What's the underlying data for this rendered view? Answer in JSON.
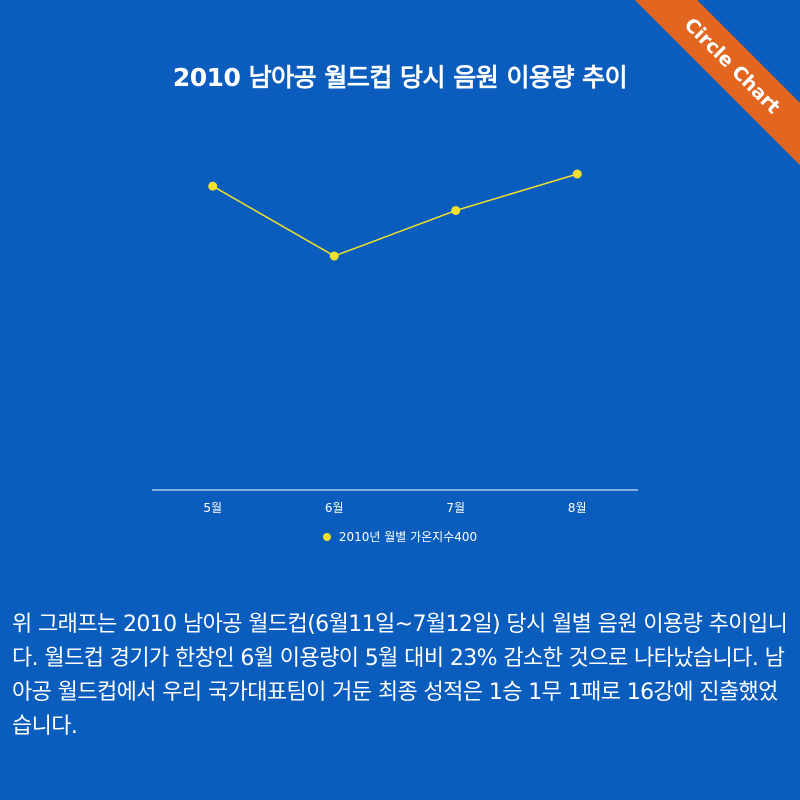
{
  "badge": "Circle Chart",
  "colors": {
    "background": "#0a5cbd",
    "series": "#f2e12c",
    "axis": "#ffffff",
    "badge": "#e2661f"
  },
  "chart_data": {
    "type": "line",
    "title": "2010 남아공 월드컵 당시 음원 이용량 추이",
    "categories": [
      "5월",
      "6월",
      "7월",
      "8월"
    ],
    "series": [
      {
        "name": "2010년 월별 가온지수400",
        "values": [
          100,
          77,
          92,
          104
        ]
      }
    ],
    "ylim": [
      0,
      130
    ],
    "grid": false,
    "y_axis_labels_shown": false,
    "legend_position": "bottom"
  },
  "description": "위 그래프는 2010 남아공 월드컵(6월11일~7월12일) 당시 월별 음원 이용량 추이입니다. 월드컵 경기가 한창인 6월 이용량이 5월 대비 23% 감소한 것으로 나타났습니다. 남아공 월드컵에서 우리 국가대표팀이 거둔 최종 성적은 1승 1무 1패로 16강에 진출했었습니다."
}
